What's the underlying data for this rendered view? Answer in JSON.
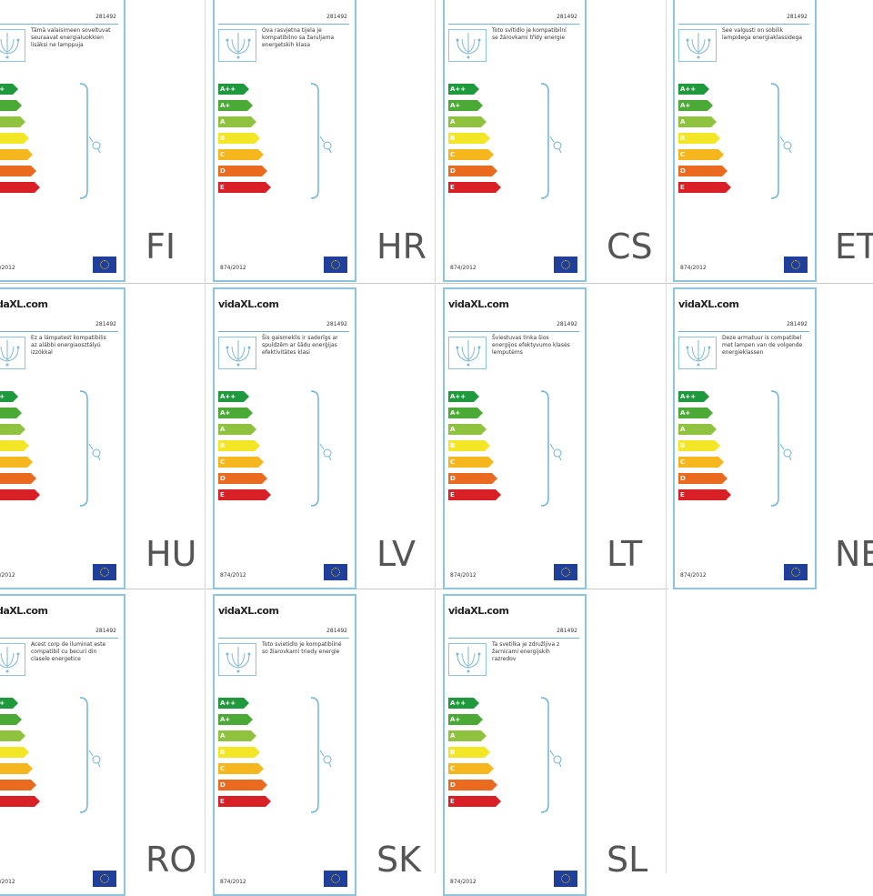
{
  "label_common": {
    "brand": "vidaXL.com",
    "product_code": "281492",
    "regulation": "874/2012",
    "classes": [
      "A++",
      "A+",
      "A",
      "B",
      "C",
      "D",
      "E"
    ],
    "class_colors": [
      "#1e9a3c",
      "#4aaa35",
      "#8ec23f",
      "#f2e627",
      "#f6b71e",
      "#ea6a1f",
      "#d92027"
    ]
  },
  "labels": [
    {
      "lang": "FI",
      "desc": "Tämä valaisimeen soveltuvat seuraavat energialuokkien lisäksi ne lamppuja"
    },
    {
      "lang": "HR",
      "desc": "Ova rasvjetna tijela je kompatibilno sa žaruljama energetskih klasa"
    },
    {
      "lang": "CS",
      "desc": "Toto svítidlo je kompatibilní se žárovkami třídy energie"
    },
    {
      "lang": "ET",
      "desc": "See valgusti on sobilik lampidega energiaklassidega"
    },
    {
      "lang": "HU",
      "desc": "Ez a lámpatest kompatibilis az alábbi energiaosztályú izzókkal"
    },
    {
      "lang": "LV",
      "desc": "Šis gaismeklis ir saderīgs ar spuldzēm ar šādu enerģijas efektivitātes klasi"
    },
    {
      "lang": "LT",
      "desc": "Šviestuvas tinka šios energijos efektyvumo klasės lemputėms"
    },
    {
      "lang": "NE",
      "desc": "Deze armatuur is compatibel met lampen van de volgende energieklassen"
    },
    {
      "lang": "RO",
      "desc": "Acest corp de iluminat este compatibil cu becuri din clasele energetice"
    },
    {
      "lang": "SK",
      "desc": "Toto svietidlo je kompatibilné so žiarovkami triedy energie"
    },
    {
      "lang": "SL",
      "desc": "Ta svetilka je združljiva z žarnicami energijskih razredov"
    }
  ]
}
